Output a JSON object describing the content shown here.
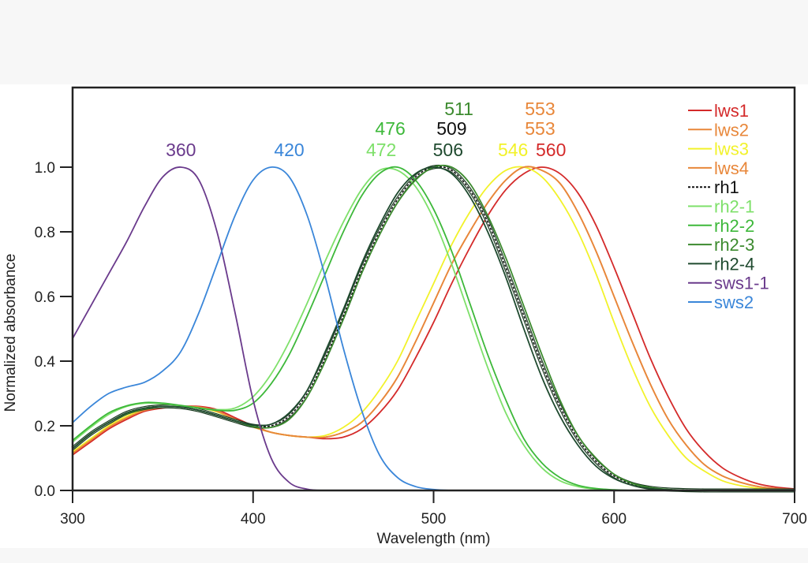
{
  "chart_data": {
    "type": "line",
    "title": "",
    "xlabel": "Wavelength (nm)",
    "ylabel": "Normalized absorbance",
    "xlim": [
      300,
      700
    ],
    "ylim": [
      0,
      1.25
    ],
    "x_ticks": [
      300,
      400,
      500,
      600,
      700
    ],
    "x_tick_labels": [
      "300",
      "400",
      "500",
      "600",
      "700"
    ],
    "y_ticks": [
      0.0,
      0.2,
      0.4,
      0.6,
      0.8,
      1.0
    ],
    "y_tick_labels": [
      "0.0",
      "0.2",
      "0.4",
      "0.6",
      "0.8",
      "1.0"
    ],
    "grid": false,
    "legend_position": "top-right",
    "x": [
      300,
      310,
      320,
      330,
      340,
      350,
      360,
      370,
      380,
      390,
      400,
      410,
      420,
      430,
      440,
      450,
      460,
      470,
      480,
      490,
      500,
      510,
      520,
      530,
      540,
      550,
      560,
      570,
      580,
      590,
      600,
      610,
      620,
      630,
      640,
      650,
      660,
      670,
      680,
      690,
      700
    ],
    "series": [
      {
        "name": "lws1",
        "color": "#d42a2a",
        "dashed": false,
        "peak": 560,
        "values": [
          0.11,
          0.15,
          0.19,
          0.22,
          0.245,
          0.255,
          0.26,
          0.26,
          0.25,
          0.225,
          0.2,
          0.18,
          0.17,
          0.165,
          0.16,
          0.165,
          0.19,
          0.24,
          0.31,
          0.41,
          0.52,
          0.64,
          0.75,
          0.85,
          0.93,
          0.98,
          1.0,
          0.98,
          0.92,
          0.82,
          0.69,
          0.55,
          0.41,
          0.29,
          0.19,
          0.12,
          0.07,
          0.04,
          0.02,
          0.01,
          0.005
        ]
      },
      {
        "name": "lws2",
        "color": "#e8873a",
        "dashed": false,
        "peak": 553,
        "values": [
          0.115,
          0.155,
          0.195,
          0.225,
          0.248,
          0.257,
          0.26,
          0.258,
          0.245,
          0.22,
          0.197,
          0.18,
          0.17,
          0.165,
          0.165,
          0.18,
          0.21,
          0.27,
          0.35,
          0.46,
          0.58,
          0.7,
          0.8,
          0.89,
          0.96,
          1.0,
          0.99,
          0.95,
          0.86,
          0.74,
          0.6,
          0.46,
          0.33,
          0.22,
          0.14,
          0.08,
          0.045,
          0.025,
          0.012,
          0.006,
          0.003
        ]
      },
      {
        "name": "lws3",
        "color": "#f2f22a",
        "dashed": false,
        "peak": 546,
        "values": [
          0.12,
          0.16,
          0.2,
          0.23,
          0.25,
          0.258,
          0.26,
          0.256,
          0.243,
          0.22,
          0.196,
          0.18,
          0.17,
          0.165,
          0.17,
          0.195,
          0.24,
          0.31,
          0.4,
          0.52,
          0.64,
          0.76,
          0.86,
          0.94,
          0.99,
          1.0,
          0.97,
          0.9,
          0.8,
          0.67,
          0.52,
          0.38,
          0.26,
          0.17,
          0.1,
          0.06,
          0.03,
          0.015,
          0.007,
          0.003,
          0.001
        ]
      },
      {
        "name": "lws4",
        "color": "#e8873a",
        "dashed": false,
        "peak": 553,
        "values": [
          0.115,
          0.155,
          0.195,
          0.225,
          0.248,
          0.257,
          0.26,
          0.258,
          0.245,
          0.22,
          0.197,
          0.18,
          0.17,
          0.165,
          0.165,
          0.18,
          0.21,
          0.27,
          0.35,
          0.46,
          0.58,
          0.7,
          0.8,
          0.89,
          0.96,
          1.0,
          0.99,
          0.95,
          0.86,
          0.74,
          0.6,
          0.46,
          0.33,
          0.22,
          0.14,
          0.08,
          0.045,
          0.025,
          0.012,
          0.006,
          0.003
        ]
      },
      {
        "name": "rh1",
        "color": "#111111",
        "dashed": true,
        "peak": 509,
        "values": [
          0.13,
          0.175,
          0.21,
          0.24,
          0.255,
          0.26,
          0.258,
          0.248,
          0.232,
          0.215,
          0.2,
          0.2,
          0.23,
          0.3,
          0.41,
          0.54,
          0.68,
          0.8,
          0.9,
          0.97,
          1.0,
          0.99,
          0.93,
          0.83,
          0.69,
          0.54,
          0.39,
          0.26,
          0.16,
          0.09,
          0.045,
          0.02,
          0.008,
          0.003,
          0.001,
          0,
          0,
          0,
          0,
          0,
          0
        ]
      },
      {
        "name": "rh2-1",
        "color": "#7ee06a",
        "dashed": false,
        "peak": 472,
        "values": [
          0.15,
          0.195,
          0.235,
          0.26,
          0.27,
          0.268,
          0.262,
          0.255,
          0.25,
          0.255,
          0.29,
          0.36,
          0.46,
          0.58,
          0.71,
          0.83,
          0.93,
          0.99,
          0.99,
          0.94,
          0.84,
          0.7,
          0.54,
          0.38,
          0.24,
          0.14,
          0.07,
          0.03,
          0.012,
          0.004,
          0.001,
          0,
          0,
          0,
          0,
          0,
          0,
          0,
          0,
          0,
          0
        ]
      },
      {
        "name": "rh2-2",
        "color": "#3db83a",
        "dashed": false,
        "peak": 476,
        "values": [
          0.155,
          0.2,
          0.24,
          0.262,
          0.272,
          0.27,
          0.263,
          0.255,
          0.248,
          0.248,
          0.27,
          0.33,
          0.42,
          0.54,
          0.67,
          0.8,
          0.91,
          0.98,
          1.0,
          0.96,
          0.87,
          0.74,
          0.58,
          0.42,
          0.28,
          0.16,
          0.085,
          0.04,
          0.016,
          0.006,
          0.002,
          0,
          0,
          0,
          0,
          0,
          0,
          0,
          0,
          0,
          0
        ]
      },
      {
        "name": "rh2-3",
        "color": "#3c8a2e",
        "dashed": false,
        "peak": 511,
        "values": [
          0.13,
          0.175,
          0.21,
          0.238,
          0.253,
          0.26,
          0.258,
          0.248,
          0.232,
          0.215,
          0.198,
          0.195,
          0.22,
          0.29,
          0.4,
          0.53,
          0.67,
          0.79,
          0.89,
          0.96,
          1.0,
          1.0,
          0.95,
          0.85,
          0.72,
          0.57,
          0.42,
          0.28,
          0.17,
          0.1,
          0.05,
          0.022,
          0.009,
          0.003,
          0.001,
          0,
          0,
          0,
          0,
          0,
          0
        ]
      },
      {
        "name": "rh2-4",
        "color": "#1f4a2f",
        "dashed": false,
        "peak": 506,
        "values": [
          0.13,
          0.175,
          0.21,
          0.24,
          0.255,
          0.26,
          0.258,
          0.248,
          0.232,
          0.215,
          0.202,
          0.205,
          0.24,
          0.31,
          0.43,
          0.56,
          0.7,
          0.82,
          0.92,
          0.98,
          1.0,
          0.98,
          0.91,
          0.8,
          0.66,
          0.5,
          0.35,
          0.23,
          0.14,
          0.075,
          0.037,
          0.016,
          0.006,
          0.002,
          0,
          0,
          0,
          0,
          0,
          0,
          0
        ]
      },
      {
        "name": "sws1-1",
        "color": "#6a3a8c",
        "dashed": false,
        "peak": 360,
        "values": [
          0.47,
          0.57,
          0.67,
          0.77,
          0.88,
          0.97,
          1.0,
          0.96,
          0.8,
          0.55,
          0.28,
          0.1,
          0.025,
          0.004,
          0,
          0,
          0,
          0,
          0,
          0,
          0,
          0,
          0,
          0,
          0,
          0,
          0,
          0,
          0,
          0,
          0,
          0,
          0,
          0,
          0,
          0,
          0,
          0,
          0,
          0,
          0
        ]
      },
      {
        "name": "sws2",
        "color": "#3a86d9",
        "dashed": false,
        "peak": 420,
        "values": [
          0.21,
          0.26,
          0.3,
          0.32,
          0.335,
          0.37,
          0.43,
          0.55,
          0.7,
          0.85,
          0.96,
          1.0,
          0.97,
          0.85,
          0.66,
          0.44,
          0.25,
          0.11,
          0.04,
          0.012,
          0.003,
          0,
          0,
          0,
          0,
          0,
          0,
          0,
          0,
          0,
          0,
          0,
          0,
          0,
          0,
          0,
          0,
          0,
          0,
          0,
          0
        ]
      }
    ],
    "annotations": [
      {
        "text": "360",
        "x": 360,
        "row": 0,
        "color": "#6a3a8c"
      },
      {
        "text": "420",
        "x": 420,
        "row": 0,
        "color": "#3a86d9"
      },
      {
        "text": "472",
        "x": 471,
        "row": 0,
        "color": "#7ee06a"
      },
      {
        "text": "476",
        "x": 476,
        "row": 1,
        "color": "#3db83a"
      },
      {
        "text": "506",
        "x": 508,
        "row": 0,
        "color": "#1f4a2f"
      },
      {
        "text": "509",
        "x": 510,
        "row": 1,
        "color": "#111111"
      },
      {
        "text": "511",
        "x": 514,
        "row": 2,
        "color": "#3c8a2e"
      },
      {
        "text": "546",
        "x": 544,
        "row": 0,
        "color": "#f2f22a"
      },
      {
        "text": "560",
        "x": 565,
        "row": 0,
        "color": "#d42a2a"
      },
      {
        "text": "553",
        "x": 559,
        "row": 1,
        "color": "#e8873a"
      },
      {
        "text": "553",
        "x": 559,
        "row": 2,
        "color": "#e8873a"
      }
    ]
  }
}
